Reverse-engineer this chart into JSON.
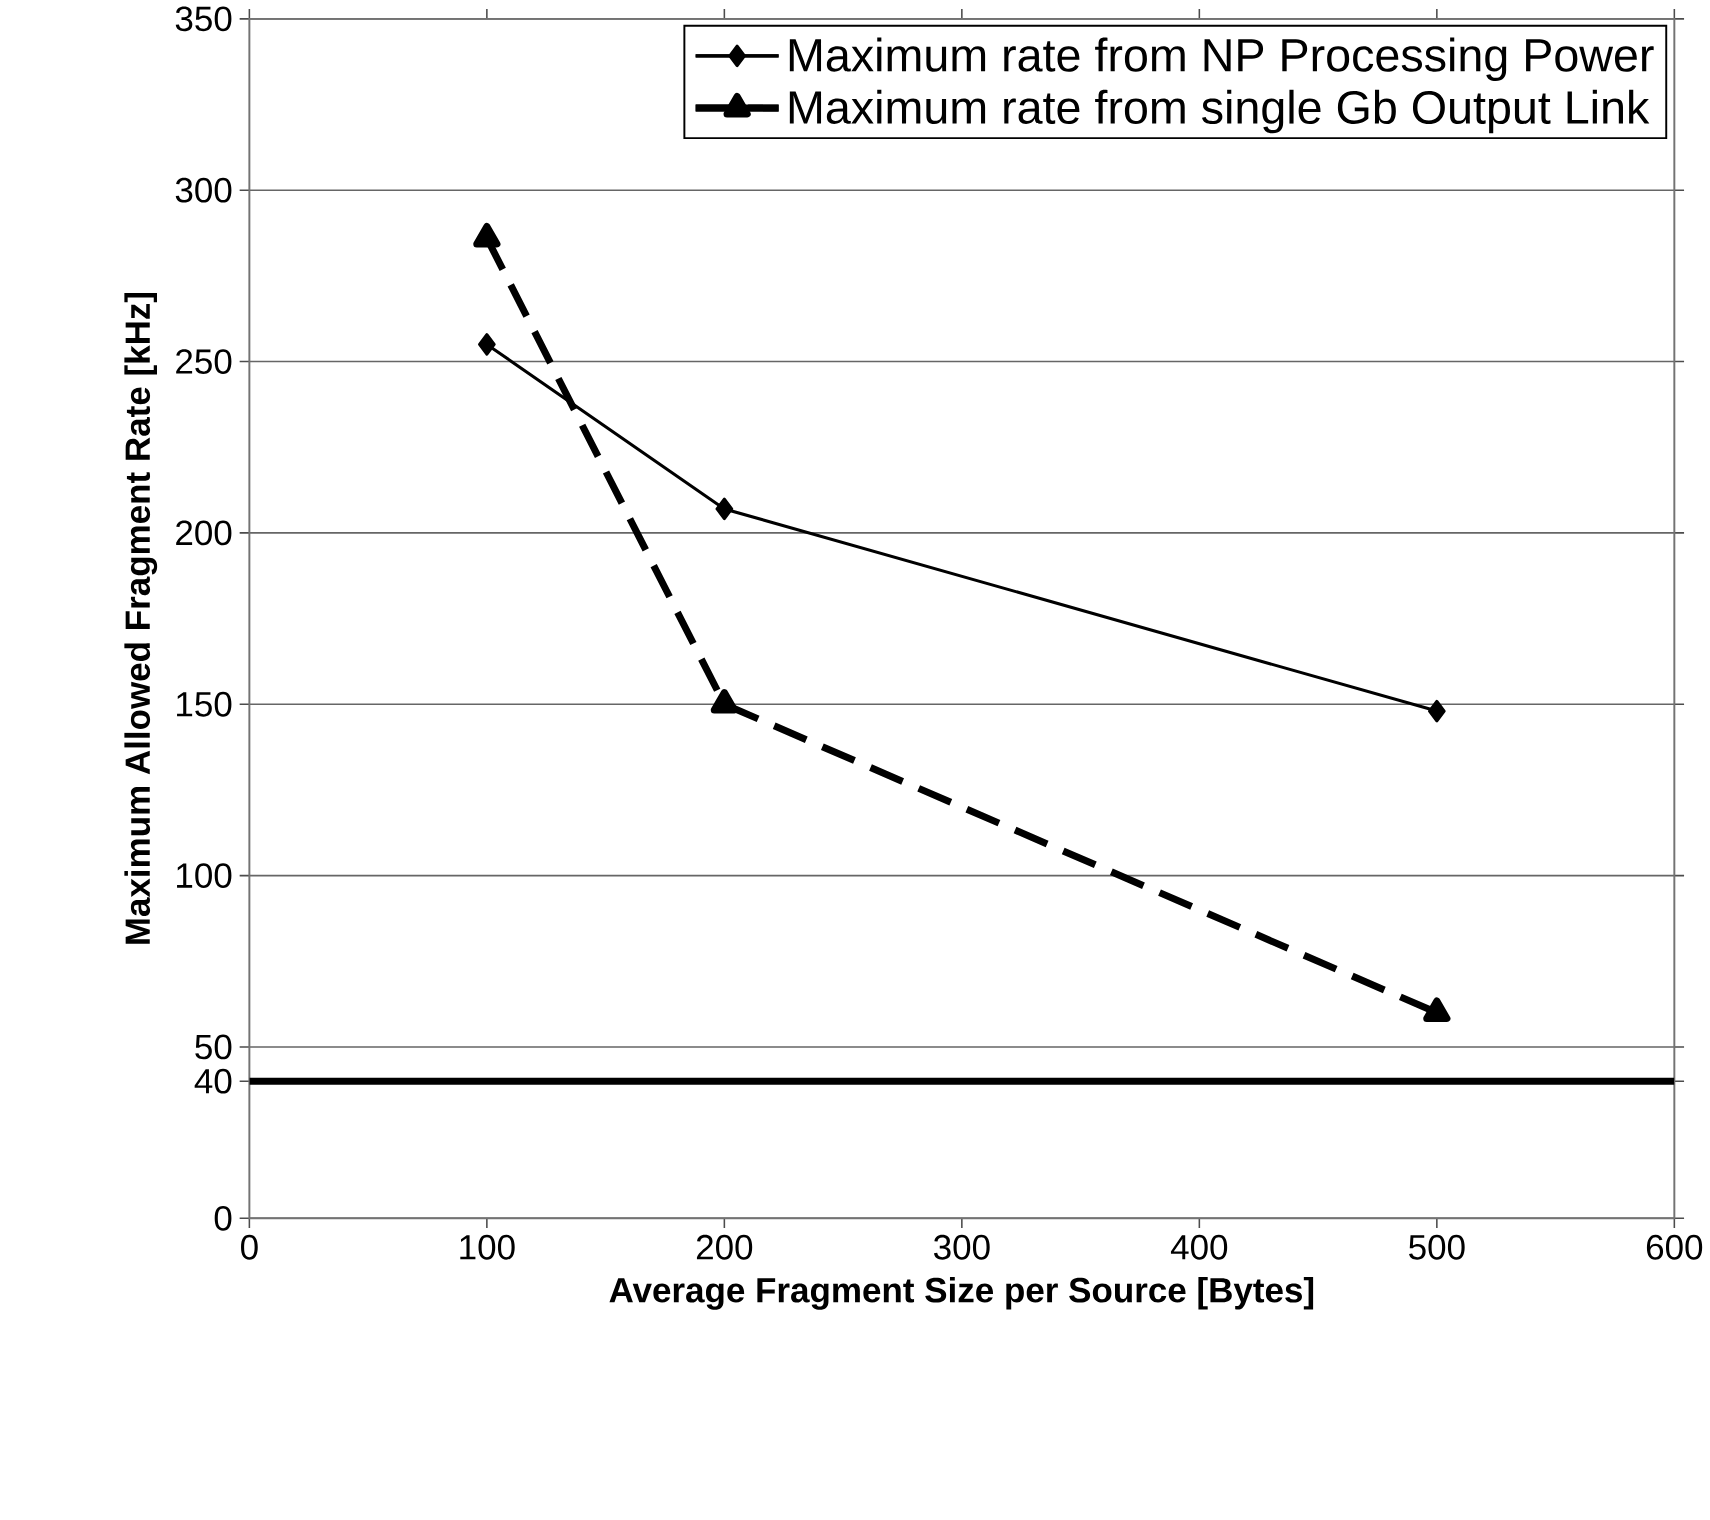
{
  "chart_data": {
    "type": "line",
    "xlabel": "Average Fragment Size per Source [Bytes]",
    "ylabel": "Maximum Allowed Fragment Rate [kHz]",
    "x": [
      100,
      200,
      500
    ],
    "series": [
      {
        "name": "Maximum rate from NP Processing Power",
        "color": "#000000",
        "values": [
          255,
          207,
          148
        ],
        "marker": "diamond",
        "line_style": "solid"
      },
      {
        "name": "Maximum rate from single Gb Output Link",
        "color": "#000000",
        "values": [
          286,
          150,
          60
        ],
        "marker": "triangle",
        "line_style": "dashed"
      }
    ],
    "xlim": [
      0,
      600
    ],
    "xticks": [
      0,
      100,
      200,
      300,
      400,
      500,
      600
    ],
    "ylim": [
      0,
      350
    ],
    "yticks": [
      0,
      40,
      50,
      100,
      150,
      200,
      250,
      300,
      350
    ],
    "ref_lines": [
      {
        "axis": "y",
        "value": 40,
        "color": "#000000"
      }
    ],
    "grid": "y",
    "legend": "top right"
  }
}
